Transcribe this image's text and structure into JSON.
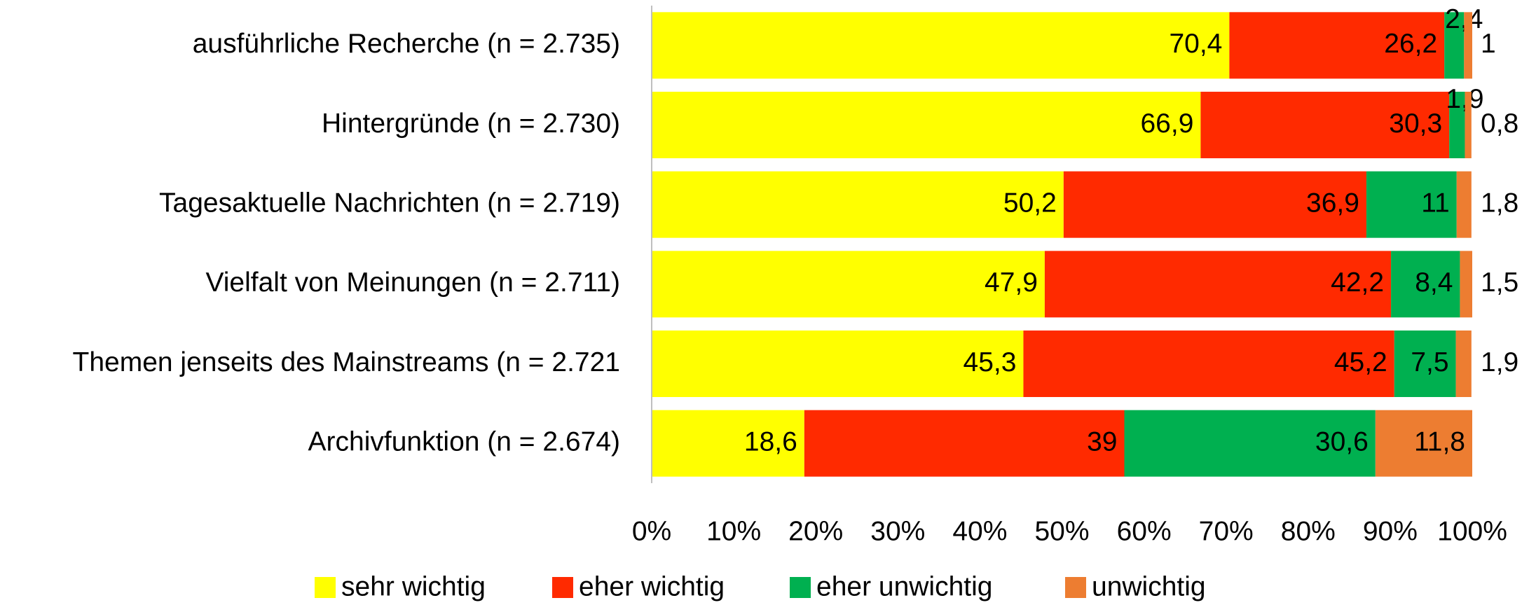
{
  "chart_data": {
    "type": "stacked-barh",
    "categories": [
      "ausführliche Recherche (n = 2.735)",
      "Hintergründe (n = 2.730)",
      "Tagesaktuelle Nachrichten (n = 2.719)",
      "Vielfalt von Meinungen (n = 2.711)",
      "Themen jenseits des Mainstreams (n = 2.721",
      "Archivfunktion (n = 2.674)"
    ],
    "series": [
      {
        "name": "sehr wichtig",
        "color": "#ffff00",
        "values": [
          70.4,
          66.9,
          50.2,
          47.9,
          45.3,
          18.6
        ],
        "value_labels": [
          "70,4",
          "66,9",
          "50,2",
          "47,9",
          "45,3",
          "18,6"
        ]
      },
      {
        "name": "eher wichtig",
        "color": "#ff2a00",
        "values": [
          26.2,
          30.3,
          36.9,
          42.2,
          45.2,
          39
        ],
        "value_labels": [
          "26,2",
          "30,3",
          "36,9",
          "42,2",
          "45,2",
          "39"
        ]
      },
      {
        "name": "eher unwichtig",
        "color": "#00b050",
        "values": [
          2.4,
          1.9,
          11,
          8.4,
          7.5,
          30.6
        ],
        "value_labels": [
          "2,4",
          "1,9",
          "11",
          "8,4",
          "7,5",
          "30,6"
        ]
      },
      {
        "name": "unwichtig",
        "color": "#ed7d31",
        "values": [
          1,
          0.8,
          1.8,
          1.5,
          1.9,
          11.8
        ],
        "value_labels": [
          "1",
          "0,8",
          "1,8",
          "1,5",
          "1,9",
          "11,8"
        ]
      }
    ],
    "xlim": [
      0,
      100
    ],
    "xticks": [
      {
        "value": 0,
        "label": "0%"
      },
      {
        "value": 10,
        "label": "10%"
      },
      {
        "value": 20,
        "label": "20%"
      },
      {
        "value": 30,
        "label": "30%"
      },
      {
        "value": 40,
        "label": "40%"
      },
      {
        "value": 50,
        "label": "50%"
      },
      {
        "value": 60,
        "label": "60%"
      },
      {
        "value": 70,
        "label": "70%"
      },
      {
        "value": 80,
        "label": "80%"
      },
      {
        "value": 90,
        "label": "90%"
      },
      {
        "value": 100,
        "label": "100%"
      }
    ],
    "legend": "bottom"
  }
}
